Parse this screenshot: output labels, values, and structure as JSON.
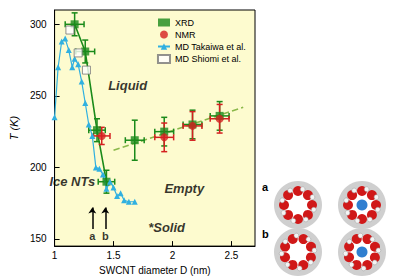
{
  "chart_data": {
    "type": "scatter",
    "x_label": "SWCNT diameter D (nm)",
    "y_label": "T (K)",
    "xlim": [
      1,
      2.7
    ],
    "xticks": [
      1,
      1.5,
      2,
      2.5
    ],
    "ylim": [
      145,
      310
    ],
    "yticks": [
      150,
      200,
      250,
      300
    ],
    "grid": false,
    "legend": "top right",
    "series": [
      {
        "name": "XRD",
        "type": "scatter",
        "marker": "square",
        "color": "#1a8a1a",
        "x": [
          1.17,
          1.26,
          1.36,
          1.44,
          1.68,
          1.93,
          2.17,
          2.4
        ],
        "values": [
          300,
          281,
          226,
          190,
          219,
          225,
          230,
          236
        ],
        "x_error": [
          0.08,
          0.08,
          0.07,
          0.07,
          0.08,
          0.08,
          0.08,
          0.08
        ],
        "y_error": [
          8,
          8,
          8,
          8,
          14,
          10,
          10,
          10
        ]
      },
      {
        "name": "NMR",
        "type": "scatter",
        "marker": "circle",
        "color": "#d42020",
        "x": [
          1.4,
          1.93,
          2.17,
          2.4
        ],
        "values": [
          222,
          221,
          229,
          234
        ],
        "x_error": [
          0.07,
          0.08,
          0.08,
          0.08
        ],
        "y_error": [
          6,
          10,
          10,
          10
        ]
      },
      {
        "name": "MD Takaiwa et al.",
        "type": "line",
        "marker": "triangle",
        "color": "#30b0e0",
        "x": [
          1.0,
          1.03,
          1.06,
          1.09,
          1.12,
          1.15,
          1.17,
          1.2,
          1.23,
          1.26,
          1.29,
          1.32,
          1.35,
          1.38,
          1.41,
          1.44,
          1.47,
          1.5,
          1.53,
          1.56,
          1.59,
          1.63,
          1.68
        ],
        "values": [
          235,
          270,
          288,
          290,
          282,
          270,
          276,
          272,
          260,
          245,
          230,
          222,
          200,
          199,
          195,
          185,
          190,
          186,
          180,
          182,
          177,
          176,
          176
        ]
      },
      {
        "name": "MD Shiomi et al.",
        "type": "scatter",
        "marker": "square_open",
        "color": "#777777",
        "x": [
          1.13,
          1.2,
          1.27
        ],
        "values": [
          296,
          280,
          268
        ]
      },
      {
        "type": "line",
        "color": "#1a8a1a",
        "line_style": "solid",
        "x": [
          1.17,
          1.26,
          1.36,
          1.44
        ],
        "values": [
          300,
          281,
          226,
          190
        ]
      },
      {
        "type": "line",
        "color": "#8ab84a",
        "line_style": "dashed",
        "x": [
          1.5,
          2.6
        ],
        "values": [
          212,
          242
        ]
      }
    ],
    "annotations": [
      {
        "text": "Liquid",
        "x": 1.62,
        "y": 257
      },
      {
        "text": "Ice NTs",
        "x": 1.15,
        "y": 190
      },
      {
        "text": "Empty",
        "x": 2.1,
        "y": 185
      },
      {
        "text": "*Solid",
        "x": 1.95,
        "y": 158
      },
      {
        "text": "a",
        "x": 1.32,
        "y": 152,
        "arrow": [
          157,
          172
        ]
      },
      {
        "text": "b",
        "x": 1.43,
        "y": 152,
        "arrow": [
          157,
          172
        ]
      }
    ]
  },
  "panels": [
    "a",
    "b"
  ]
}
